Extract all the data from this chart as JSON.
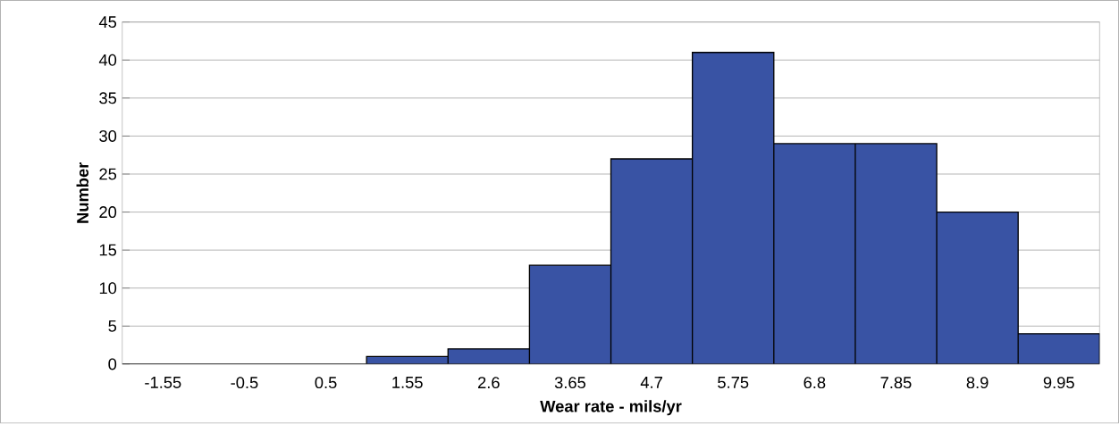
{
  "chart_data": {
    "type": "bar",
    "xlabel": "Wear rate - mils/yr",
    "ylabel": "Number",
    "categories": [
      "-1.55",
      "-0.5",
      "0.5",
      "1.55",
      "2.6",
      "3.65",
      "4.7",
      "5.75",
      "6.8",
      "7.85",
      "8.9",
      "9.95"
    ],
    "values": [
      0,
      0,
      0,
      1,
      2,
      13,
      27,
      41,
      29,
      29,
      20,
      4
    ],
    "color": "#3953a4",
    "ylim": [
      0,
      45
    ],
    "yticks": [
      0,
      5,
      10,
      15,
      20,
      25,
      30,
      35,
      40,
      45
    ],
    "grid": "y"
  }
}
